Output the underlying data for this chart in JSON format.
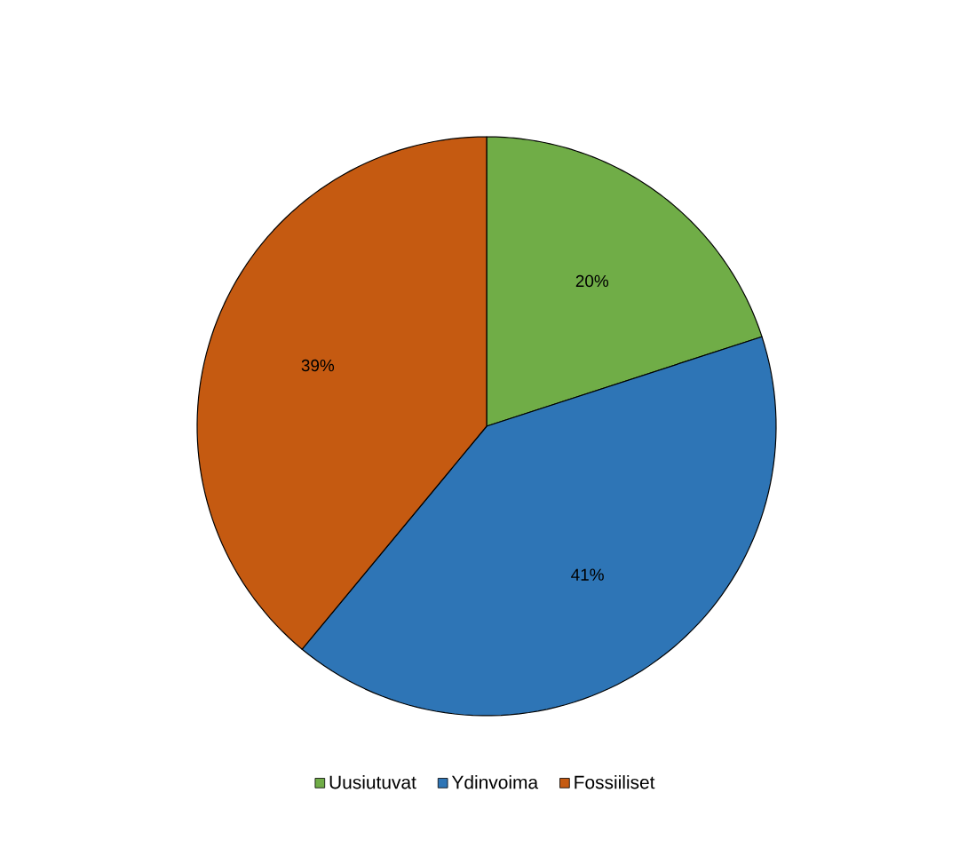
{
  "chart_data": {
    "type": "pie",
    "categories": [
      "Uusiutuvat",
      "Ydinvoima",
      "Fossiiliset"
    ],
    "values": [
      20,
      41,
      39
    ],
    "colors": [
      "#70ad47",
      "#2e75b6",
      "#c55a11"
    ],
    "value_labels": [
      "20%",
      "41%",
      "39%"
    ],
    "legend": "bottom"
  }
}
